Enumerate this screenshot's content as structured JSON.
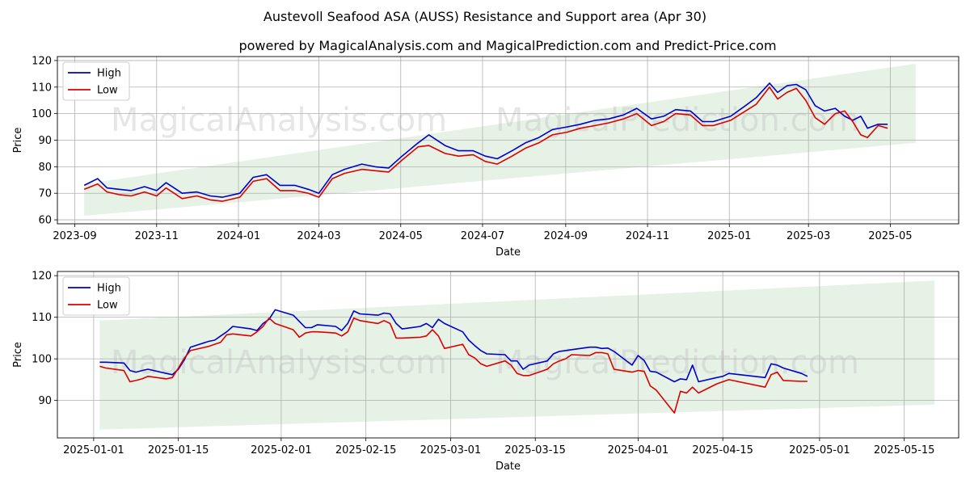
{
  "header": {
    "title": "Austevoll Seafood ASA (AUSS) Resistance and Support area (Apr 30)",
    "subtitle": "powered by MagicalAnalysis.com and MagicalPrediction.com and Predict-Price.com"
  },
  "watermarks": [
    "MagicalAnalysis.com",
    "MagicalPrediction.com"
  ],
  "colors": {
    "high": "#0000cc",
    "low": "#dd0000",
    "band": "#d3e9d3",
    "grid": "#b0b0b0"
  },
  "chart_data": [
    {
      "type": "line",
      "xlabel": "Date",
      "ylabel": "Price",
      "xlim": [
        "2023-08-19",
        "2025-06-21"
      ],
      "ylim": [
        58.5,
        121.5
      ],
      "yticks": [
        60,
        70,
        80,
        90,
        100,
        110,
        120
      ],
      "xticks": [
        "2023-09",
        "2023-11",
        "2024-01",
        "2024-03",
        "2024-05",
        "2024-07",
        "2024-09",
        "2024-11",
        "2025-01",
        "2025-03",
        "2025-05"
      ],
      "grid": true,
      "legend": "top-left",
      "band": {
        "x": [
          "2023-09-08",
          "2025-05-20"
        ],
        "upper": [
          73.5,
          118.8
        ],
        "lower": [
          61.5,
          89.0
        ]
      },
      "series": [
        {
          "name": "High",
          "x": [
            "2023-09-08",
            "2023-09-18",
            "2023-09-25",
            "2023-10-04",
            "2023-10-13",
            "2023-10-23",
            "2023-11-01",
            "2023-11-08",
            "2023-11-14",
            "2023-11-20",
            "2023-12-01",
            "2023-12-11",
            "2023-12-20",
            "2024-01-02",
            "2024-01-12",
            "2024-01-22",
            "2024-02-01",
            "2024-02-12",
            "2024-02-22",
            "2024-03-01",
            "2024-03-11",
            "2024-03-20",
            "2024-04-02",
            "2024-04-12",
            "2024-04-22",
            "2024-05-02",
            "2024-05-14",
            "2024-05-22",
            "2024-06-03",
            "2024-06-13",
            "2024-06-24",
            "2024-07-03",
            "2024-07-12",
            "2024-07-23",
            "2024-08-02",
            "2024-08-12",
            "2024-08-22",
            "2024-09-02",
            "2024-09-12",
            "2024-09-23",
            "2024-10-03",
            "2024-10-14",
            "2024-10-24",
            "2024-11-04",
            "2024-11-13",
            "2024-11-22",
            "2024-12-03",
            "2024-12-12",
            "2024-12-20",
            "2025-01-02",
            "2025-01-13",
            "2025-01-21",
            "2025-01-31",
            "2025-02-06",
            "2025-02-13",
            "2025-02-20",
            "2025-02-27",
            "2025-03-06",
            "2025-03-13",
            "2025-03-21",
            "2025-03-28",
            "2025-04-03",
            "2025-04-09",
            "2025-04-14",
            "2025-04-22",
            "2025-04-29"
          ],
          "values": [
            73,
            75.5,
            72,
            71.5,
            71,
            72.5,
            71,
            74,
            72,
            70,
            70.5,
            69,
            68.5,
            70,
            76,
            77,
            73,
            73,
            71.5,
            70,
            77,
            79,
            81,
            80,
            79.5,
            84,
            89,
            92,
            88,
            86,
            86,
            84,
            83,
            86,
            89,
            91,
            94,
            95,
            96,
            97.5,
            98,
            99.5,
            102,
            98,
            99,
            101.5,
            101,
            97,
            97,
            99,
            103,
            106,
            111.5,
            108,
            110.5,
            111,
            109,
            103,
            101,
            102,
            99,
            97.5,
            99,
            94.5,
            96,
            96
          ]
        },
        {
          "name": "Low",
          "x": [
            "2023-09-08",
            "2023-09-18",
            "2023-09-25",
            "2023-10-04",
            "2023-10-13",
            "2023-10-23",
            "2023-11-01",
            "2023-11-08",
            "2023-11-14",
            "2023-11-20",
            "2023-12-01",
            "2023-12-11",
            "2023-12-20",
            "2024-01-02",
            "2024-01-12",
            "2024-01-22",
            "2024-02-01",
            "2024-02-12",
            "2024-02-22",
            "2024-03-01",
            "2024-03-11",
            "2024-03-20",
            "2024-04-02",
            "2024-04-12",
            "2024-04-22",
            "2024-05-02",
            "2024-05-14",
            "2024-05-22",
            "2024-06-03",
            "2024-06-13",
            "2024-06-24",
            "2024-07-03",
            "2024-07-12",
            "2024-07-23",
            "2024-08-02",
            "2024-08-12",
            "2024-08-22",
            "2024-09-02",
            "2024-09-12",
            "2024-09-23",
            "2024-10-03",
            "2024-10-14",
            "2024-10-24",
            "2024-11-04",
            "2024-11-13",
            "2024-11-22",
            "2024-12-03",
            "2024-12-12",
            "2024-12-20",
            "2025-01-02",
            "2025-01-13",
            "2025-01-21",
            "2025-01-31",
            "2025-02-06",
            "2025-02-13",
            "2025-02-20",
            "2025-02-27",
            "2025-03-06",
            "2025-03-13",
            "2025-03-21",
            "2025-03-28",
            "2025-04-03",
            "2025-04-09",
            "2025-04-14",
            "2025-04-22",
            "2025-04-29"
          ],
          "values": [
            71.5,
            73.5,
            70.5,
            69.5,
            69,
            70.5,
            69,
            72,
            70,
            68,
            69,
            67.5,
            67,
            68.5,
            74.5,
            75.5,
            71,
            71,
            70,
            68.5,
            75.5,
            77.5,
            79,
            78.5,
            78,
            82.5,
            87.5,
            88,
            85,
            84,
            84.5,
            82,
            81,
            84,
            87,
            89,
            92,
            93,
            94.5,
            95.5,
            96.5,
            98,
            100,
            95.5,
            97,
            100,
            99.5,
            95.5,
            95.5,
            97.5,
            101,
            103.5,
            110,
            105.5,
            108,
            109.5,
            105,
            98.5,
            96,
            100,
            101,
            97,
            92,
            91,
            95.5,
            94.5
          ]
        }
      ]
    },
    {
      "type": "line",
      "xlabel": "Date",
      "ylabel": "Price",
      "xlim": [
        "2024-12-26",
        "2025-05-24"
      ],
      "ylim": [
        81.0,
        121.0
      ],
      "yticks": [
        90,
        100,
        110,
        120
      ],
      "xticks": [
        "2025-01-01",
        "2025-01-15",
        "2025-02-01",
        "2025-02-15",
        "2025-03-01",
        "2025-03-15",
        "2025-04-01",
        "2025-04-15",
        "2025-05-01",
        "2025-05-15"
      ],
      "grid": true,
      "legend": "top-left",
      "band": {
        "x": [
          "2025-01-02",
          "2025-05-20"
        ],
        "upper": [
          109.2,
          118.8
        ],
        "lower": [
          83.0,
          89.0
        ]
      },
      "series": [
        {
          "name": "High",
          "x": [
            "2025-01-02",
            "2025-01-03",
            "2025-01-06",
            "2025-01-07",
            "2025-01-08",
            "2025-01-09",
            "2025-01-10",
            "2025-01-13",
            "2025-01-14",
            "2025-01-15",
            "2025-01-16",
            "2025-01-17",
            "2025-01-20",
            "2025-01-21",
            "2025-01-22",
            "2025-01-23",
            "2025-01-24",
            "2025-01-27",
            "2025-01-28",
            "2025-01-29",
            "2025-01-30",
            "2025-01-31",
            "2025-02-03",
            "2025-02-04",
            "2025-02-05",
            "2025-02-06",
            "2025-02-07",
            "2025-02-10",
            "2025-02-11",
            "2025-02-12",
            "2025-02-13",
            "2025-02-14",
            "2025-02-17",
            "2025-02-18",
            "2025-02-19",
            "2025-02-20",
            "2025-02-21",
            "2025-02-24",
            "2025-02-25",
            "2025-02-26",
            "2025-02-27",
            "2025-02-28",
            "2025-03-03",
            "2025-03-04",
            "2025-03-05",
            "2025-03-06",
            "2025-03-07",
            "2025-03-10",
            "2025-03-11",
            "2025-03-12",
            "2025-03-13",
            "2025-03-14",
            "2025-03-17",
            "2025-03-18",
            "2025-03-19",
            "2025-03-20",
            "2025-03-21",
            "2025-03-24",
            "2025-03-25",
            "2025-03-26",
            "2025-03-27",
            "2025-03-28",
            "2025-03-31",
            "2025-04-01",
            "2025-04-02",
            "2025-04-03",
            "2025-04-04",
            "2025-04-07",
            "2025-04-08",
            "2025-04-09",
            "2025-04-10",
            "2025-04-11",
            "2025-04-14",
            "2025-04-15",
            "2025-04-16",
            "2025-04-22",
            "2025-04-23",
            "2025-04-24",
            "2025-04-25",
            "2025-04-28",
            "2025-04-29"
          ],
          "values": [
            99.2,
            99.2,
            99.0,
            97.2,
            96.8,
            97.2,
            97.5,
            96.5,
            96.2,
            97.5,
            99.8,
            102.8,
            104.2,
            104.5,
            105.5,
            106.5,
            107.8,
            107.2,
            106.8,
            108.5,
            109.5,
            111.8,
            110.5,
            109.0,
            107.5,
            107.5,
            108.2,
            107.8,
            106.8,
            108.5,
            111.5,
            110.8,
            110.5,
            111.0,
            110.8,
            108.5,
            107.2,
            107.8,
            108.5,
            107.5,
            109.5,
            108.5,
            106.5,
            104.5,
            103.2,
            102.0,
            101.2,
            101.0,
            99.5,
            99.5,
            97.5,
            98.5,
            99.5,
            101.2,
            101.8,
            102.0,
            102.2,
            102.8,
            102.8,
            102.5,
            102.6,
            101.8,
            98.5,
            100.8,
            99.6,
            97.0,
            96.8,
            94.5,
            95.2,
            95.0,
            98.5,
            94.5,
            95.5,
            95.8,
            96.5,
            95.5,
            98.8,
            98.5,
            97.8,
            96.5,
            95.8
          ]
        },
        {
          "name": "Low",
          "x": [
            "2025-01-02",
            "2025-01-03",
            "2025-01-06",
            "2025-01-07",
            "2025-01-08",
            "2025-01-09",
            "2025-01-10",
            "2025-01-13",
            "2025-01-14",
            "2025-01-15",
            "2025-01-16",
            "2025-01-17",
            "2025-01-20",
            "2025-01-21",
            "2025-01-22",
            "2025-01-23",
            "2025-01-24",
            "2025-01-27",
            "2025-01-28",
            "2025-01-29",
            "2025-01-30",
            "2025-01-31",
            "2025-02-03",
            "2025-02-04",
            "2025-02-05",
            "2025-02-06",
            "2025-02-07",
            "2025-02-10",
            "2025-02-11",
            "2025-02-12",
            "2025-02-13",
            "2025-02-14",
            "2025-02-17",
            "2025-02-18",
            "2025-02-19",
            "2025-02-20",
            "2025-02-21",
            "2025-02-24",
            "2025-02-25",
            "2025-02-26",
            "2025-02-27",
            "2025-02-28",
            "2025-03-03",
            "2025-03-04",
            "2025-03-05",
            "2025-03-06",
            "2025-03-07",
            "2025-03-10",
            "2025-03-11",
            "2025-03-12",
            "2025-03-13",
            "2025-03-14",
            "2025-03-17",
            "2025-03-18",
            "2025-03-19",
            "2025-03-20",
            "2025-03-21",
            "2025-03-24",
            "2025-03-25",
            "2025-03-26",
            "2025-03-27",
            "2025-03-28",
            "2025-03-31",
            "2025-04-01",
            "2025-04-02",
            "2025-04-03",
            "2025-04-04",
            "2025-04-07",
            "2025-04-08",
            "2025-04-09",
            "2025-04-10",
            "2025-04-11",
            "2025-04-14",
            "2025-04-15",
            "2025-04-16",
            "2025-04-22",
            "2025-04-23",
            "2025-04-24",
            "2025-04-25",
            "2025-04-28",
            "2025-04-29"
          ],
          "values": [
            98.2,
            97.8,
            97.2,
            94.5,
            94.8,
            95.2,
            95.8,
            95.2,
            95.5,
            97.8,
            100.2,
            102.0,
            103.0,
            103.5,
            104.0,
            105.8,
            106.0,
            105.5,
            106.5,
            107.8,
            109.8,
            108.5,
            107.0,
            105.2,
            106.2,
            106.5,
            106.5,
            106.2,
            105.5,
            106.5,
            109.8,
            109.2,
            108.5,
            109.2,
            108.5,
            105.0,
            105.0,
            105.2,
            105.5,
            107.0,
            105.5,
            102.5,
            103.5,
            101.0,
            100.2,
            98.8,
            98.2,
            99.5,
            98.5,
            96.5,
            96.0,
            96.0,
            97.5,
            98.8,
            99.5,
            100.0,
            101.0,
            100.8,
            101.5,
            101.5,
            101.2,
            97.5,
            96.8,
            97.2,
            97.0,
            93.5,
            92.5,
            87.0,
            92.2,
            91.8,
            93.2,
            91.8,
            94.0,
            94.5,
            95.0,
            93.2,
            96.2,
            96.8,
            94.8,
            94.6,
            94.6
          ]
        }
      ]
    }
  ]
}
